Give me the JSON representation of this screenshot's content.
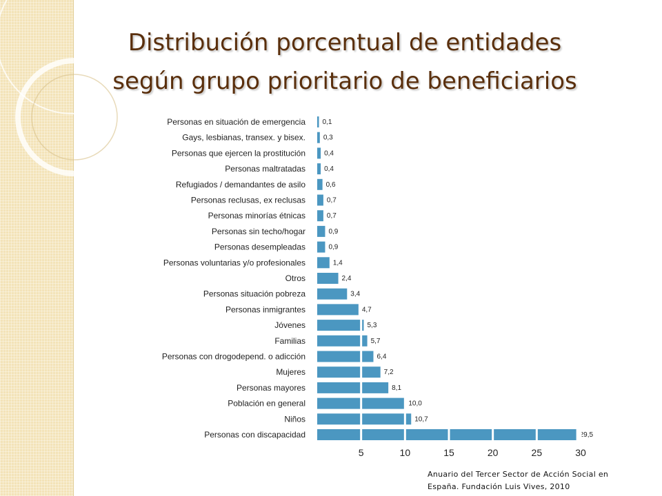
{
  "title": {
    "line1": "Distribución porcentual de entidades",
    "line2": "según grupo prioritario de beneficiarios"
  },
  "source": {
    "line1": "Anuario del Tercer Sector de Acción Social en",
    "line2": "España.  Fundación Luis Vives, 2010"
  },
  "colors": {
    "bar": "#4b97c1",
    "title": "#5a2f0c",
    "band": "#f3e3b8"
  },
  "chart_data": {
    "type": "bar",
    "orientation": "horizontal",
    "title": "Distribución porcentual de entidades según grupo prioritario de beneficiarios",
    "xlabel": "",
    "ylabel": "",
    "xlim": [
      0,
      30
    ],
    "xticks": [
      5,
      10,
      15,
      20,
      25,
      30
    ],
    "categories": [
      "Personas en situación de emergencia",
      "Gays, lesbianas, transex. y bisex.",
      "Personas que ejercen la prostitución",
      "Personas maltratadas",
      "Refugiados / demandantes de asilo",
      "Personas reclusas, ex reclusas",
      "Personas minorías étnicas",
      "Personas sin techo/hogar",
      "Personas desempleadas",
      "Personas voluntarias y/o profesionales",
      "Otros",
      "Personas situación pobreza",
      "Personas inmigrantes",
      "Jóvenes",
      "Familias",
      "Personas con drogodepend. o adicción",
      "Mujeres",
      "Personas mayores",
      "Población en general",
      "Niños",
      "Personas con discapacidad"
    ],
    "values": [
      0.1,
      0.3,
      0.4,
      0.4,
      0.6,
      0.7,
      0.7,
      0.9,
      0.9,
      1.4,
      2.4,
      3.4,
      4.7,
      5.3,
      5.7,
      6.4,
      7.2,
      8.1,
      10.0,
      10.7,
      29.5
    ],
    "value_labels": [
      "0,1",
      "0,3",
      "0,4",
      "0,4",
      "0,6",
      "0,7",
      "0,7",
      "0,9",
      "0,9",
      "1,4",
      "2,4",
      "3,4",
      "4,7",
      "5,3",
      "5,7",
      "6,4",
      "7,2",
      "8,1",
      "10,0",
      "10,7",
      "29,5"
    ],
    "grid": false
  }
}
